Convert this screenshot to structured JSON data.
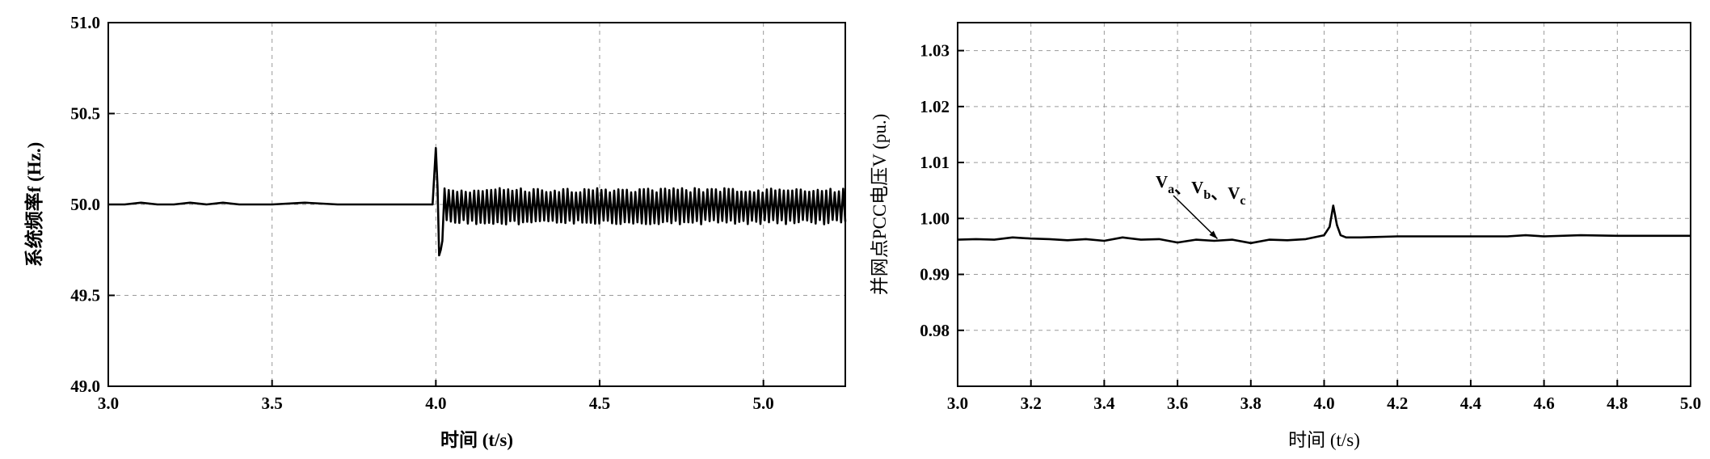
{
  "chart_data": [
    {
      "type": "line",
      "title": "",
      "xlabel": "时间 (t/s)",
      "ylabel": "系统频率f (Hz.)",
      "xlim": [
        3.0,
        5.25
      ],
      "ylim": [
        49.0,
        51.0
      ],
      "xticks": [
        3.0,
        3.5,
        4.0,
        4.5,
        5.0
      ],
      "xtick_labels": [
        "3.0",
        "3.5",
        "4.0",
        "4.5",
        "5.0"
      ],
      "yticks": [
        49.0,
        49.5,
        50.0,
        50.5,
        51.0
      ],
      "ytick_labels": [
        "49.0",
        "49.5",
        "50.0",
        "50.5",
        "51.0"
      ],
      "grid": true,
      "series": [
        {
          "color": "#000000",
          "x": [
            3.0,
            3.05,
            3.1,
            3.15,
            3.2,
            3.25,
            3.3,
            3.35,
            3.4,
            3.5,
            3.6,
            3.7,
            3.8,
            3.9,
            3.99,
            4.0,
            4.005,
            4.01,
            4.015,
            4.02,
            4.04,
            4.06,
            4.08,
            4.1,
            4.15,
            4.2,
            4.3,
            4.4,
            4.5,
            4.6,
            4.7,
            4.8,
            4.9,
            5.0,
            5.1,
            5.2,
            5.25
          ],
          "y": [
            50.0,
            50.0,
            50.01,
            50.0,
            50.0,
            50.01,
            50.0,
            50.01,
            50.0,
            50.0,
            50.01,
            50.0,
            50.0,
            50.0,
            50.0,
            50.31,
            50.1,
            49.72,
            49.75,
            49.8,
            49.86,
            49.9,
            49.92,
            49.93,
            49.92,
            49.92,
            49.92,
            49.92,
            49.92,
            49.92,
            49.92,
            49.92,
            49.92,
            49.92,
            49.92,
            49.92,
            49.92
          ],
          "oscillation": {
            "from": 4.02,
            "to": 5.25,
            "lower": 49.89,
            "upper": 50.09
          }
        }
      ]
    },
    {
      "type": "line",
      "title": "",
      "xlabel": "时间 (t/s)",
      "ylabel": "并网点PCC电压V (pu.)",
      "xlim": [
        3.0,
        5.0
      ],
      "ylim": [
        0.97,
        1.035
      ],
      "xticks": [
        3.0,
        3.2,
        3.4,
        3.6,
        3.8,
        4.0,
        4.2,
        4.4,
        4.6,
        4.8,
        5.0
      ],
      "xtick_labels": [
        "3.0",
        "3.2",
        "3.4",
        "3.6",
        "3.8",
        "4.0",
        "4.2",
        "4.4",
        "4.6",
        "4.8",
        "5.0"
      ],
      "yticks": [
        0.98,
        0.99,
        1.0,
        1.01,
        1.02,
        1.03
      ],
      "ytick_labels": [
        "0.98",
        "0.99",
        "1.00",
        "1.01",
        "1.02",
        "1.03"
      ],
      "grid": true,
      "annotation": {
        "parts": [
          {
            "base": "V",
            "sub": "a"
          },
          {
            "sep": "、"
          },
          {
            "base": "V",
            "sub": "b"
          },
          {
            "sep": "、"
          },
          {
            "base": "V",
            "sub": "c"
          }
        ],
        "arrow_target": [
          3.7,
          0.9955
        ]
      },
      "series": [
        {
          "color": "#000000",
          "x": [
            3.0,
            3.05,
            3.1,
            3.15,
            3.2,
            3.25,
            3.3,
            3.35,
            3.4,
            3.45,
            3.5,
            3.55,
            3.6,
            3.65,
            3.7,
            3.75,
            3.8,
            3.85,
            3.9,
            3.95,
            4.0,
            4.015,
            4.025,
            4.035,
            4.045,
            4.06,
            4.1,
            4.2,
            4.3,
            4.4,
            4.5,
            4.55,
            4.6,
            4.7,
            4.8,
            4.9,
            5.0
          ],
          "y": [
            0.9962,
            0.9963,
            0.9962,
            0.9966,
            0.9964,
            0.9963,
            0.9961,
            0.9963,
            0.996,
            0.9966,
            0.9962,
            0.9963,
            0.9957,
            0.9962,
            0.996,
            0.9962,
            0.9956,
            0.9962,
            0.9961,
            0.9963,
            0.997,
            0.9985,
            1.0023,
            0.9988,
            0.997,
            0.9966,
            0.9966,
            0.9968,
            0.9968,
            0.9968,
            0.9968,
            0.997,
            0.9968,
            0.997,
            0.9969,
            0.9969,
            0.9969
          ]
        }
      ]
    }
  ]
}
